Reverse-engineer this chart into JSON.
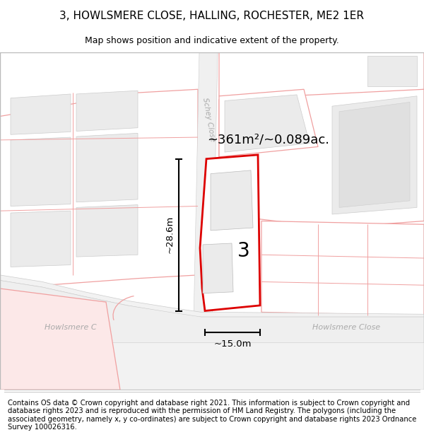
{
  "title": "3, HOWLSMERE CLOSE, HALLING, ROCHESTER, ME2 1ER",
  "subtitle": "Map shows position and indicative extent of the property.",
  "footer": "Contains OS data © Crown copyright and database right 2021. This information is subject to Crown copyright and database rights 2023 and is reproduced with the permission of HM Land Registry. The polygons (including the associated geometry, namely x, y co-ordinates) are subject to Crown copyright and database rights 2023 Ordnance Survey 100026316.",
  "area_label": "~361m²/~0.089ac.",
  "width_label": "~15.0m",
  "height_label": "~28.6m",
  "plot_number": "3",
  "street_label_left": "Howlsmere C",
  "street_label_right": "Howlsmere Close",
  "street_label_top": "Schey Close",
  "bg_color": "#f8f8f8",
  "white": "#ffffff",
  "light_gray": "#ebebeb",
  "mid_gray": "#e0e0e0",
  "dark_gray": "#cccccc",
  "pink_line": "#f0a0a0",
  "red_line": "#dd0000",
  "black": "#000000",
  "text_gray": "#aaaaaa",
  "title_fontsize": 11,
  "subtitle_fontsize": 9,
  "footer_fontsize": 7.2
}
